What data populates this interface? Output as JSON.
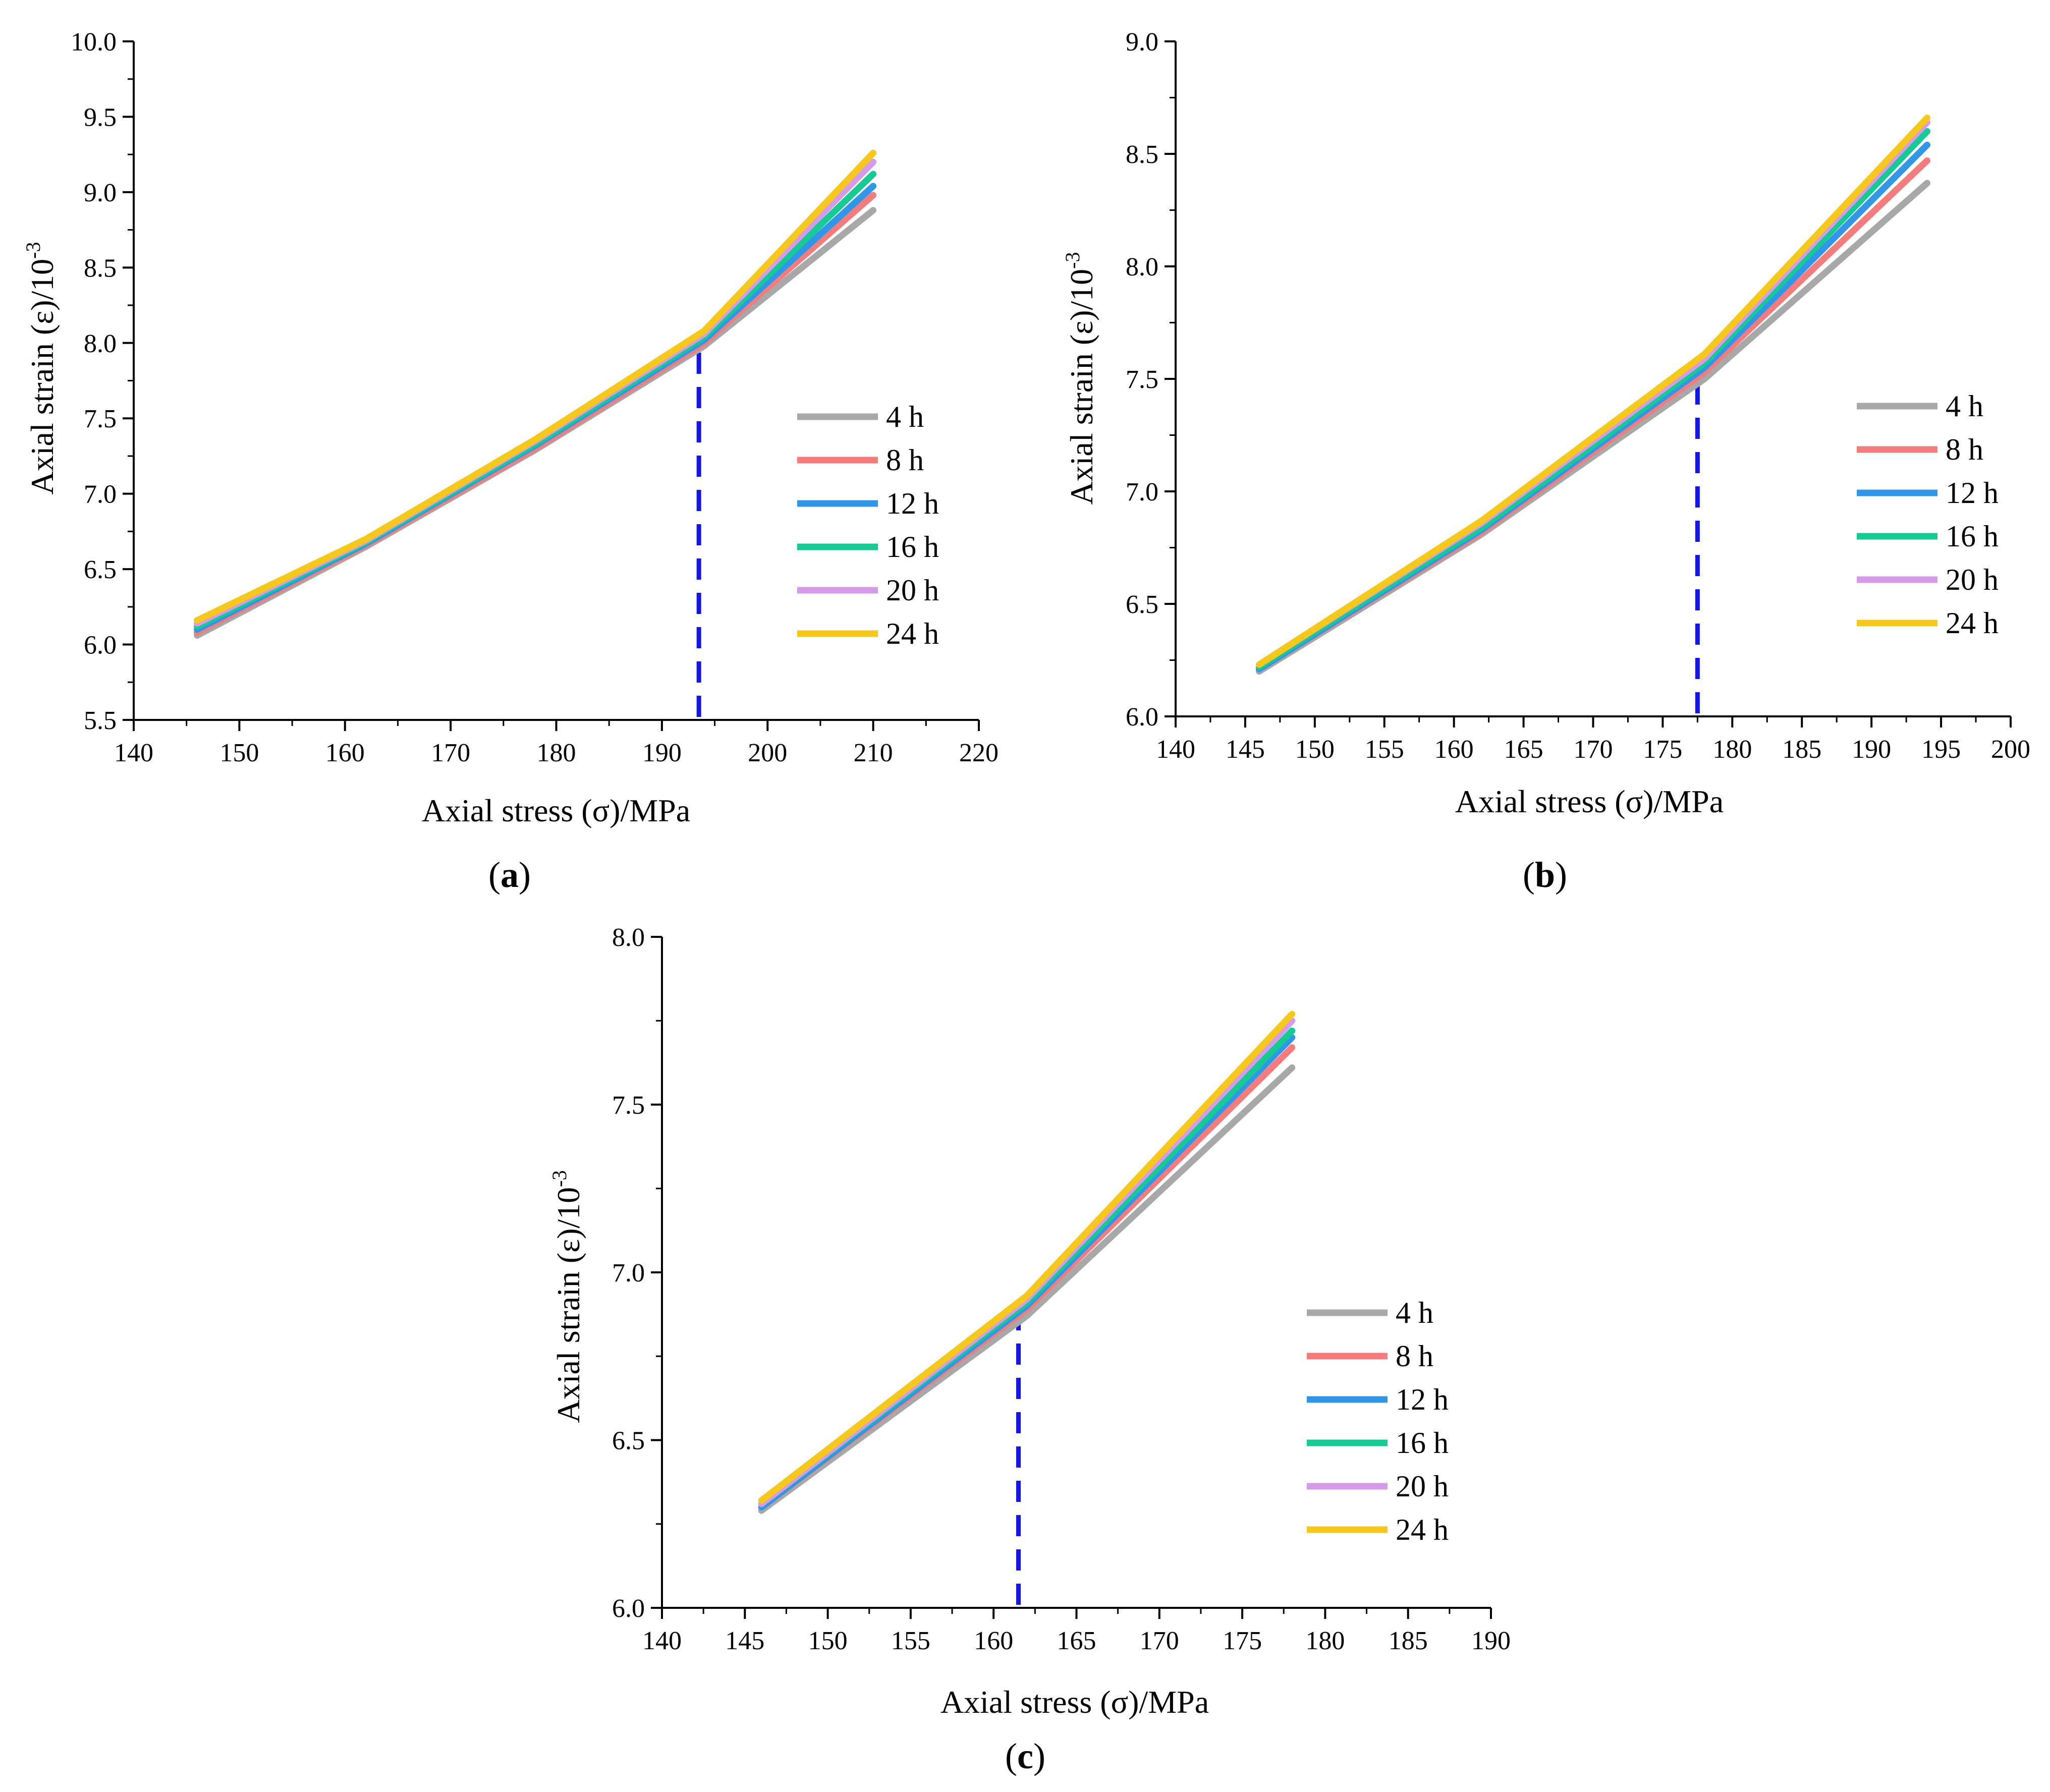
{
  "figure": {
    "panel_count": 3
  },
  "legend_colors": {
    "4 h": "#a8a8a8",
    "8 h": "#f57c7c",
    "12 h": "#2f96e8",
    "16 h": "#17c994",
    "20 h": "#d69be8",
    "24 h": "#f7c81c"
  },
  "threshold_color": "#1515e6",
  "chart_data": [
    {
      "type": "line",
      "panel_label": "(a)",
      "panel_letter": "a",
      "xlabel": "Axial stress (σ)/MPa",
      "ylabel_main": "Axial strain (ε)/10",
      "ylabel_exp": "-3",
      "xlim": [
        140,
        220
      ],
      "ylim": [
        5.5,
        10.0
      ],
      "xticks": [
        "140",
        "150",
        "160",
        "170",
        "180",
        "190",
        "200",
        "210",
        "220"
      ],
      "yticks": [
        "5.5",
        "6.0",
        "6.5",
        "7.0",
        "7.5",
        "8.0",
        "8.5",
        "9.0",
        "9.5",
        "10.0"
      ],
      "threshold_x": 193.5,
      "legend_position": "middle-right",
      "x": [
        146,
        162,
        178,
        194,
        210
      ],
      "series": [
        {
          "name": "4 h",
          "values": [
            6.06,
            6.65,
            7.29,
            7.98,
            8.88
          ]
        },
        {
          "name": "8 h",
          "values": [
            6.08,
            6.66,
            7.3,
            8.0,
            8.98
          ]
        },
        {
          "name": "12 h",
          "values": [
            6.1,
            6.67,
            7.32,
            8.02,
            9.04
          ]
        },
        {
          "name": "16 h",
          "values": [
            6.12,
            6.68,
            7.33,
            8.04,
            9.12
          ]
        },
        {
          "name": "20 h",
          "values": [
            6.14,
            6.69,
            7.35,
            8.06,
            9.2
          ]
        },
        {
          "name": "24 h",
          "values": [
            6.16,
            6.7,
            7.36,
            8.08,
            9.26
          ]
        }
      ]
    },
    {
      "type": "line",
      "panel_label": "(b)",
      "panel_letter": "b",
      "xlabel": "Axial stress (σ)/MPa",
      "ylabel_main": "Axial strain (ε)/10",
      "ylabel_exp": "-3",
      "xlim": [
        140,
        200
      ],
      "ylim": [
        6.0,
        9.0
      ],
      "xticks": [
        "140",
        "145",
        "150",
        "155",
        "160",
        "165",
        "170",
        "175",
        "180",
        "185",
        "190",
        "195",
        "200"
      ],
      "yticks": [
        "6.0",
        "6.5",
        "7.0",
        "7.5",
        "8.0",
        "8.5",
        "9.0"
      ],
      "threshold_x": 177.5,
      "legend_position": "middle-right",
      "x": [
        146,
        162,
        178,
        194
      ],
      "series": [
        {
          "name": "4 h",
          "values": [
            6.2,
            6.81,
            7.5,
            8.37
          ]
        },
        {
          "name": "8 h",
          "values": [
            6.21,
            6.82,
            7.53,
            8.47
          ]
        },
        {
          "name": "12 h",
          "values": [
            6.21,
            6.83,
            7.55,
            8.54
          ]
        },
        {
          "name": "16 h",
          "values": [
            6.22,
            6.84,
            7.57,
            8.6
          ]
        },
        {
          "name": "20 h",
          "values": [
            6.23,
            6.86,
            7.59,
            8.64
          ]
        },
        {
          "name": "24 h",
          "values": [
            6.23,
            6.87,
            7.61,
            8.66
          ]
        }
      ]
    },
    {
      "type": "line",
      "panel_label": "(c)",
      "panel_letter": "c",
      "xlabel": "Axial stress (σ)/MPa",
      "ylabel_main": "Axial strain (ε)/10",
      "ylabel_exp": "-3",
      "xlim": [
        140,
        190
      ],
      "ylim": [
        6.0,
        8.0
      ],
      "xticks": [
        "140",
        "145",
        "150",
        "155",
        "160",
        "165",
        "170",
        "175",
        "180",
        "185",
        "190"
      ],
      "yticks": [
        "6.0",
        "6.5",
        "7.0",
        "7.5",
        "8.0"
      ],
      "threshold_x": 161.5,
      "legend_position": "middle-right",
      "x": [
        146,
        162,
        178
      ],
      "series": [
        {
          "name": "4 h",
          "values": [
            6.29,
            6.87,
            7.61
          ]
        },
        {
          "name": "8 h",
          "values": [
            6.3,
            6.89,
            7.67
          ]
        },
        {
          "name": "12 h",
          "values": [
            6.3,
            6.9,
            7.7
          ]
        },
        {
          "name": "16 h",
          "values": [
            6.31,
            6.91,
            7.72
          ]
        },
        {
          "name": "20 h",
          "values": [
            6.31,
            6.92,
            7.75
          ]
        },
        {
          "name": "24 h",
          "values": [
            6.32,
            6.93,
            7.77
          ]
        }
      ]
    }
  ]
}
